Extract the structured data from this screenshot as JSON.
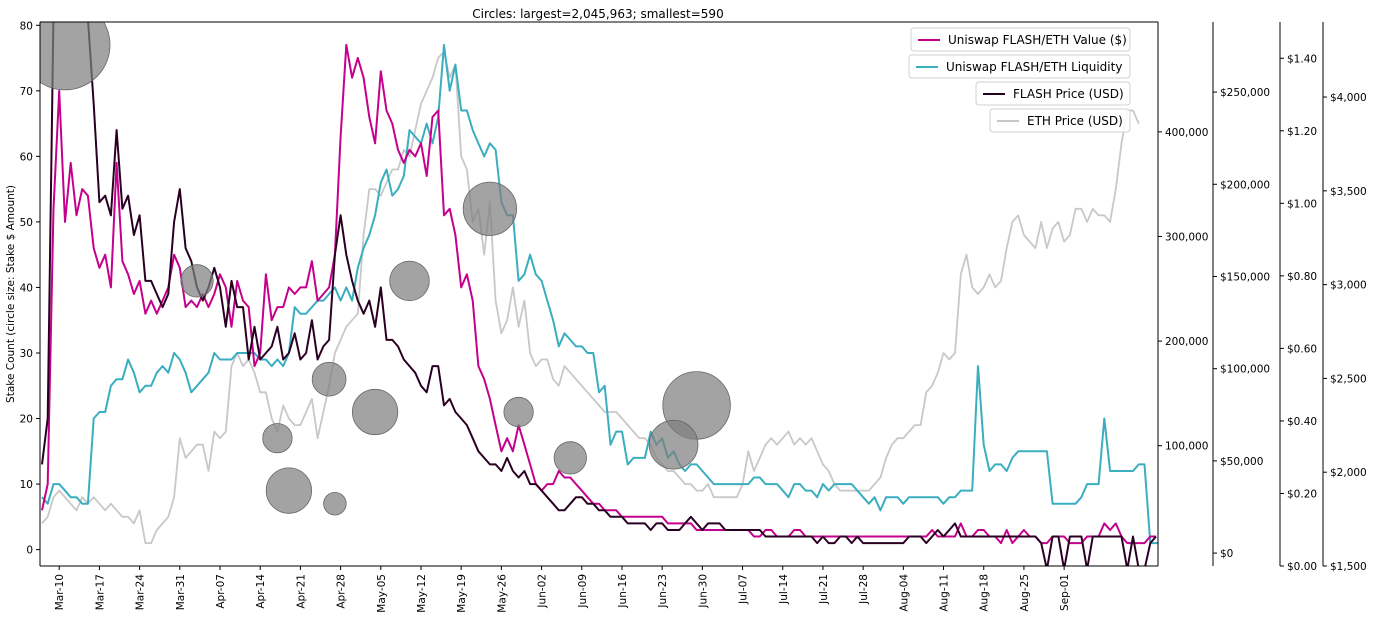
{
  "chart_data": {
    "type": "line",
    "title": "Circles: largest=2,045,963; smallest=590",
    "ylabel": "Stake Count (circle size: Stake $ Amount)",
    "xlabel": "",
    "x_ticks": [
      "Mar-10",
      "Mar-17",
      "Mar-24",
      "Mar-31",
      "Apr-07",
      "Apr-14",
      "Apr-21",
      "Apr-28",
      "May-05",
      "May-12",
      "May-19",
      "May-26",
      "Jun-02",
      "Jun-09",
      "Jun-16",
      "Jun-23",
      "Jun-30",
      "Jul-07",
      "Jul-14",
      "Jul-21",
      "Jul-28",
      "Aug-04",
      "Aug-11",
      "Aug-18",
      "Aug-25",
      "Sep-01"
    ],
    "left_axis": {
      "label": "Stake Count",
      "ylim": [
        -2.5,
        80.5
      ],
      "ticks": [
        "0",
        "10",
        "20",
        "30",
        "40",
        "50",
        "60",
        "70",
        "80"
      ]
    },
    "axis_liquidity_count": {
      "ylim": [
        -15000,
        505000
      ],
      "ticks": [
        "100,000",
        "200,000",
        "300,000",
        "400,000"
      ],
      "tick_values": [
        100000,
        200000,
        300000,
        400000
      ]
    },
    "axis_value_usd": {
      "ylim": [
        -7000,
        288000
      ],
      "ticks": [
        "$0",
        "$50,000",
        "$100,000",
        "$150,000",
        "$200,000",
        "$250,000"
      ],
      "tick_values": [
        0,
        50000,
        100000,
        150000,
        200000,
        250000
      ]
    },
    "axis_flash_price": {
      "ylim": [
        0.0,
        1.5
      ],
      "ticks": [
        "$0.00",
        "$0.20",
        "$0.40",
        "$0.60",
        "$0.80",
        "$1.00",
        "$1.20",
        "$1.40"
      ],
      "tick_values": [
        0,
        0.2,
        0.4,
        0.6,
        0.8,
        1.0,
        1.2,
        1.4
      ]
    },
    "axis_eth_price": {
      "ylim": [
        1500,
        4400
      ],
      "ticks": [
        "$1,500",
        "$2,000",
        "$2,500",
        "$3,000",
        "$3,500",
        "$4,000"
      ],
      "tick_values": [
        1500,
        2000,
        2500,
        3000,
        3500,
        4000
      ]
    },
    "legend_position": "top-right",
    "series": [
      {
        "name": "Uniswap FLASH/ETH Value ($)",
        "color": "#c5008c",
        "axis": "left",
        "values": [
          6,
          10,
          52,
          70,
          50,
          59,
          51,
          55,
          54,
          46,
          43,
          45,
          40,
          59,
          44,
          42,
          39,
          41,
          36,
          38,
          36,
          38,
          40,
          45,
          43,
          37,
          38,
          37,
          39,
          37,
          39,
          42,
          40,
          34,
          41,
          38,
          37,
          28,
          30,
          42,
          35,
          37,
          37,
          40,
          39,
          40,
          40,
          44,
          38,
          39,
          40,
          45,
          63,
          77,
          72,
          75,
          72,
          66,
          62,
          73,
          67,
          65,
          61,
          59,
          61,
          60,
          62,
          57,
          66,
          67,
          51,
          52,
          48,
          40,
          42,
          38,
          28,
          26,
          23,
          19,
          15,
          17,
          15,
          19,
          16,
          13,
          10,
          9,
          10,
          10,
          12,
          11,
          11,
          10,
          9,
          8,
          7,
          7,
          6,
          6,
          6,
          5,
          5,
          5,
          5,
          5,
          5,
          5,
          5,
          4,
          4,
          4,
          4,
          4,
          3,
          3,
          3,
          3,
          3,
          3,
          3,
          3,
          3,
          3,
          2,
          2,
          3,
          3,
          2,
          2,
          2,
          3,
          3,
          2,
          2,
          2,
          2,
          2,
          2,
          2,
          2,
          2,
          2,
          2,
          2,
          2,
          2,
          2,
          2,
          2,
          2,
          2,
          2,
          2,
          2,
          3,
          2,
          2,
          2,
          2,
          4,
          2,
          2,
          3,
          3,
          2,
          2,
          1,
          3,
          1,
          2,
          3,
          2,
          2,
          1,
          1,
          2,
          2,
          2,
          1,
          1,
          1,
          2,
          2,
          2,
          4,
          3,
          4,
          2,
          1,
          1,
          1,
          1,
          2,
          2
        ]
      },
      {
        "name": "Uniswap FLASH/ETH Liquidity",
        "color": "#3aaec0",
        "axis": "left",
        "values": [
          8,
          7,
          10,
          10,
          9,
          8,
          8,
          7,
          7,
          20,
          21,
          21,
          25,
          26,
          26,
          29,
          27,
          24,
          25,
          25,
          27,
          28,
          27,
          30,
          29,
          27,
          24,
          25,
          26,
          27,
          30,
          29,
          29,
          29,
          30,
          30,
          30,
          30,
          29,
          29,
          28,
          29,
          28,
          30,
          37,
          36,
          36,
          37,
          38,
          38,
          39,
          40,
          38,
          40,
          38,
          43,
          46,
          48,
          51,
          56,
          58,
          54,
          55,
          57,
          64,
          63,
          62,
          65,
          62,
          66,
          77,
          70,
          74,
          67,
          67,
          64,
          62,
          60,
          62,
          61,
          53,
          51,
          51,
          41,
          42,
          45,
          42,
          41,
          38,
          35,
          31,
          33,
          32,
          31,
          31,
          30,
          30,
          24,
          25,
          16,
          18,
          18,
          13,
          14,
          14,
          14,
          18,
          16,
          17,
          14,
          15,
          13,
          12,
          13,
          13,
          12,
          11,
          10,
          10,
          10,
          10,
          10,
          10,
          10,
          11,
          11,
          10,
          10,
          10,
          9,
          8,
          10,
          10,
          9,
          9,
          8,
          10,
          9,
          10,
          10,
          10,
          10,
          9,
          8,
          7,
          8,
          6,
          8,
          8,
          8,
          7,
          8,
          8,
          8,
          8,
          8,
          8,
          7,
          8,
          8,
          9,
          9,
          9,
          28,
          16,
          12,
          13,
          13,
          12,
          14,
          15,
          15,
          15,
          15,
          15,
          15,
          7,
          7,
          7,
          7,
          7,
          8,
          10,
          10,
          10,
          20,
          12,
          12,
          12,
          12,
          12,
          13,
          13,
          1,
          1,
          1,
          2,
          2,
          2
        ]
      },
      {
        "name": "FLASH Price (USD)",
        "color": "#2a0022",
        "axis": "left",
        "values": [
          13,
          20,
          82,
          90,
          86,
          84,
          85,
          82,
          81,
          68,
          53,
          54,
          51,
          64,
          52,
          54,
          48,
          51,
          41,
          41,
          39,
          37,
          39,
          50,
          55,
          46,
          44,
          40,
          38,
          40,
          43,
          40,
          34,
          41,
          37,
          37,
          29,
          34,
          29,
          30,
          31,
          34,
          29,
          30,
          33,
          29,
          30,
          35,
          29,
          31,
          32,
          45,
          51,
          45,
          41,
          38,
          36,
          38,
          34,
          40,
          32,
          32,
          31,
          29,
          28,
          27,
          25,
          24,
          28,
          28,
          22,
          23,
          21,
          20,
          19,
          17,
          15,
          14,
          13,
          13,
          12,
          14,
          12,
          11,
          12,
          10,
          10,
          9,
          8,
          7,
          6,
          6,
          7,
          8,
          8,
          7,
          7,
          6,
          6,
          5,
          5,
          5,
          4,
          4,
          4,
          4,
          3,
          4,
          4,
          3,
          3,
          3,
          4,
          5,
          4,
          3,
          4,
          4,
          4,
          3,
          3,
          3,
          3,
          3,
          3,
          3,
          2,
          2,
          2,
          2,
          2,
          2,
          2,
          2,
          2,
          1,
          2,
          1,
          1,
          2,
          2,
          1,
          2,
          1,
          1,
          1,
          1,
          1,
          1,
          1,
          1,
          2,
          2,
          2,
          1,
          2,
          3,
          2,
          3,
          4,
          2,
          2,
          2,
          2,
          2,
          2,
          2,
          2,
          2,
          2,
          2,
          2,
          2,
          2,
          1,
          -3,
          2,
          2,
          -3,
          2,
          2,
          2,
          -3,
          2,
          2,
          2,
          2,
          2,
          2,
          -3,
          2,
          -3,
          -3,
          1,
          2
        ]
      },
      {
        "name": "ETH Price (USD)",
        "color": "#c8c8c8",
        "axis": "left",
        "values": [
          4,
          5,
          8,
          9,
          8,
          7,
          6,
          8,
          7,
          8,
          7,
          6,
          7,
          6,
          5,
          5,
          4,
          6,
          1,
          1,
          3,
          4,
          5,
          8,
          17,
          14,
          15,
          16,
          16,
          12,
          18,
          17,
          18,
          28,
          30,
          28,
          29,
          27,
          24,
          24,
          20,
          18,
          22,
          20,
          19,
          19,
          21,
          23,
          17,
          21,
          25,
          30,
          32,
          34,
          35,
          36,
          48,
          55,
          55,
          54,
          56,
          58,
          58,
          61,
          60,
          64,
          68,
          70,
          72,
          75,
          76,
          72,
          74,
          60,
          58,
          50,
          52,
          45,
          53,
          38,
          33,
          35,
          40,
          34,
          38,
          30,
          28,
          29,
          29,
          26,
          25,
          28,
          27,
          26,
          25,
          24,
          23,
          22,
          21,
          21,
          21,
          20,
          19,
          18,
          17,
          17,
          16,
          14,
          13,
          12,
          12,
          11,
          10,
          10,
          9,
          9,
          10,
          8,
          8,
          8,
          8,
          8,
          10,
          15,
          12,
          14,
          16,
          17,
          16,
          17,
          18,
          16,
          17,
          16,
          17,
          15,
          13,
          12,
          10,
          9,
          9,
          9,
          9,
          9,
          9,
          10,
          11,
          14,
          16,
          17,
          17,
          18,
          19,
          19,
          24,
          25,
          27,
          30,
          29,
          30,
          42,
          45,
          40,
          39,
          40,
          42,
          40,
          41,
          46,
          50,
          51,
          48,
          47,
          46,
          50,
          46,
          49,
          50,
          47,
          48,
          52,
          52,
          50,
          52,
          51,
          51,
          50,
          55,
          62,
          67,
          67,
          65
        ]
      }
    ],
    "circles": [
      {
        "day": 4,
        "count": 77,
        "stake_usd": 2045963
      },
      {
        "day": 51,
        "count": 7,
        "stake_usd": 50000
      },
      {
        "day": 64,
        "count": 41,
        "stake_usd": 280000
      },
      {
        "day": 27,
        "count": 41,
        "stake_usd": 160000
      },
      {
        "day": 83,
        "count": 21,
        "stake_usd": 120000
      },
      {
        "day": 50,
        "count": 26,
        "stake_usd": 180000
      },
      {
        "day": 41,
        "count": 17,
        "stake_usd": 120000
      },
      {
        "day": 58,
        "count": 21,
        "stake_usd": 400000
      },
      {
        "day": 43,
        "count": 9,
        "stake_usd": 400000
      },
      {
        "day": 78,
        "count": 52,
        "stake_usd": 600000
      },
      {
        "day": 114,
        "count": 22,
        "stake_usd": 1060000
      },
      {
        "day": 110,
        "count": 16,
        "stake_usd": 480000
      },
      {
        "day": 92,
        "count": 14,
        "stake_usd": 160000
      }
    ]
  }
}
